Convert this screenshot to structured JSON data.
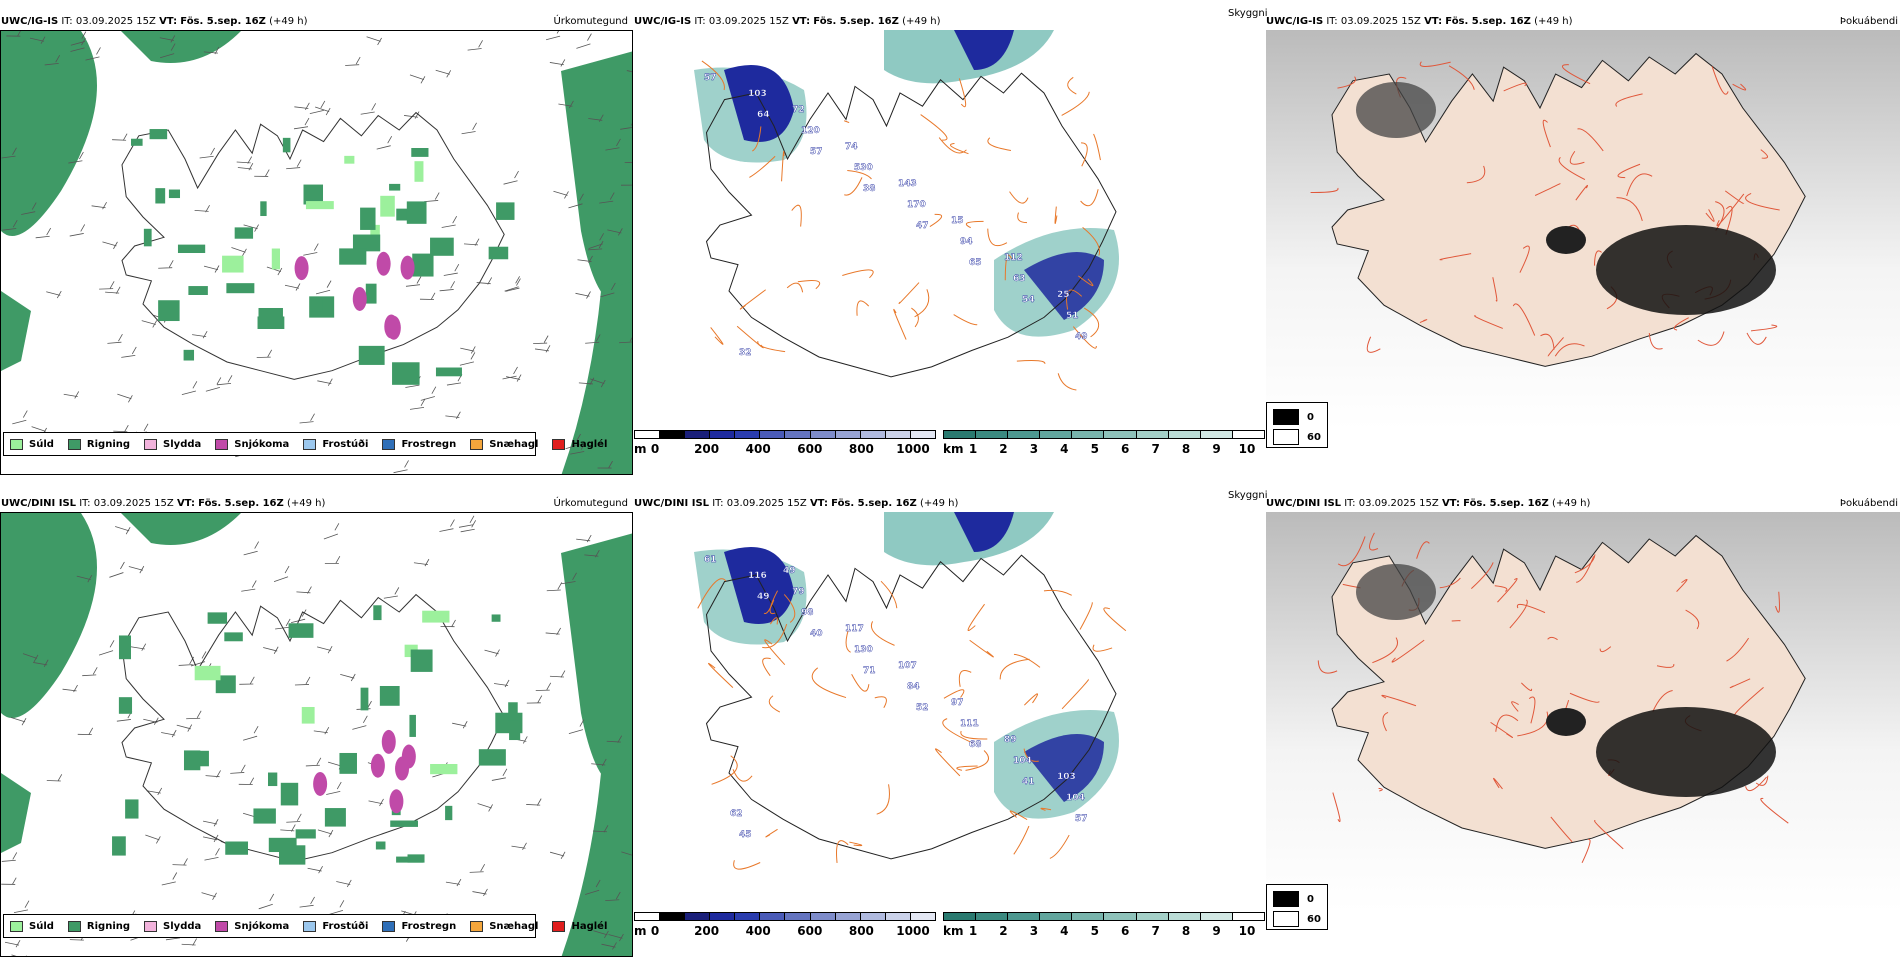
{
  "rows": [
    {
      "model": "UWC/IG-IS",
      "it_label": "IT:",
      "it_value": "03.09.2025 15Z",
      "vt_label": "VT:",
      "vt_value": "Fös. 5.sep. 16Z",
      "lead": "(+49 h)",
      "titles": {
        "precip": "Úrkomutegund",
        "visibility": "Skyggni",
        "fog": "Þokuábendi"
      },
      "labels": [
        "57",
        "64",
        "57",
        "38",
        "47",
        "65",
        "54",
        "49",
        "103",
        "120",
        "530",
        "170",
        "94",
        "63",
        "51",
        "32",
        "72",
        "74",
        "143",
        "15",
        "112",
        "25"
      ]
    },
    {
      "model": "UWC/DINI ISL",
      "it_label": "IT:",
      "it_value": "03.09.2025 15Z",
      "vt_label": "VT:",
      "vt_value": "Fös. 5.sep. 16Z",
      "lead": "(+49 h)",
      "titles": {
        "precip": "Úrkomutegund",
        "visibility": "Skyggni",
        "fog": "Þokuábendi"
      },
      "labels": [
        "61",
        "49",
        "40",
        "71",
        "52",
        "68",
        "41",
        "57",
        "116",
        "98",
        "130",
        "84",
        "111",
        "104",
        "104",
        "45",
        "79",
        "117",
        "107",
        "97",
        "89",
        "103",
        "62",
        "49"
      ]
    }
  ],
  "precip_legend": [
    {
      "label": "Súld",
      "color": "#9cf09c"
    },
    {
      "label": "Rigning",
      "color": "#3f9a66"
    },
    {
      "label": "Slydda",
      "color": "#f2b3dc"
    },
    {
      "label": "Snjókoma",
      "color": "#c04aa8"
    },
    {
      "label": "Frostúði",
      "color": "#9cc8ee"
    },
    {
      "label": "Frostregn",
      "color": "#2f6fb8"
    },
    {
      "label": "Snæhagl",
      "color": "#f4a63c"
    },
    {
      "label": "Haglél",
      "color": "#e01e1e"
    }
  ],
  "cloud_scale": {
    "unit": "m",
    "ticks": [
      "0",
      "200",
      "400",
      "600",
      "800",
      "1000"
    ]
  },
  "vis_scale": {
    "unit": "km",
    "ticks": [
      "1",
      "2",
      "3",
      "4",
      "5",
      "6",
      "7",
      "8",
      "9",
      "10"
    ]
  },
  "fog_legend": [
    {
      "label": "0",
      "color": "#000000"
    },
    {
      "label": "60",
      "color": "#ffffff"
    }
  ],
  "colors": {
    "rain": "#3f9a66",
    "drizzle": "#9cf09c",
    "snow": "#c04aa8",
    "teal": "#5fb2a8",
    "navy": "#1e2a9e",
    "road": "#e8782a",
    "landFog": "#f3e0d2",
    "roadFog": "#e0573a"
  }
}
